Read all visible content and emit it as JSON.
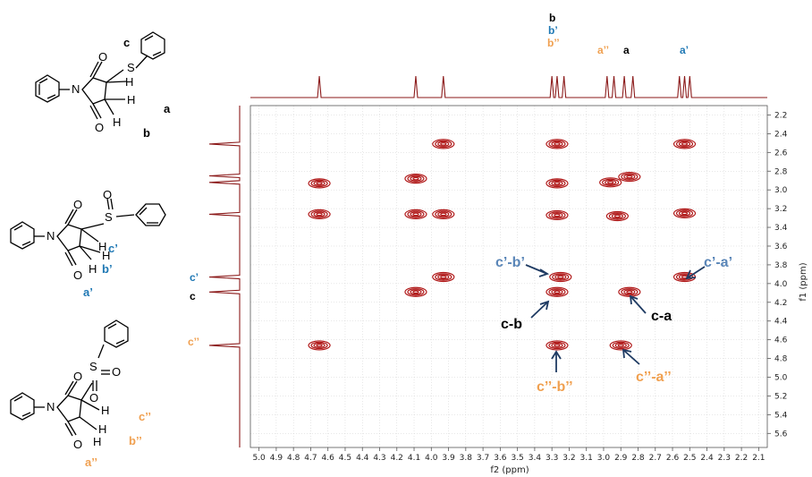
{
  "colors": {
    "spectrum": "#8b1a1a",
    "contour": "#b01818",
    "arrow": "#1f3b63",
    "black": "#000000",
    "blue": "#1f78b4",
    "orange": "#f0a050",
    "grid": "#cfcfcf"
  },
  "chart_data": {
    "type": "scatter",
    "subtype": "2D NMR COSY contour plot",
    "xlabel": "f2 (ppm)",
    "ylabel": "f1 (ppm)",
    "xlim": [
      5.05,
      2.05
    ],
    "ylim": [
      2.1,
      5.75
    ],
    "x_reversed": true,
    "y_reversed": true,
    "grid": true,
    "x_ticks": [
      "5.0",
      "4.9",
      "4.8",
      "4.7",
      "4.6",
      "4.5",
      "4.4",
      "4.3",
      "4.2",
      "4.1",
      "4.0",
      "3.9",
      "3.8",
      "3.7",
      "3.6",
      "3.5",
      "3.4",
      "3.3",
      "3.2",
      "3.1",
      "3.0",
      "2.9",
      "2.8",
      "2.7",
      "2.6",
      "2.5",
      "2.4",
      "2.3",
      "2.2",
      "2.1"
    ],
    "y_ticks": [
      "2.2",
      "2.4",
      "2.6",
      "2.8",
      "3.0",
      "3.2",
      "3.4",
      "3.6",
      "3.8",
      "4.0",
      "4.2",
      "4.4",
      "4.6",
      "4.8",
      "5.0",
      "5.2",
      "5.4",
      "5.6"
    ],
    "cross_peaks": [
      {
        "x": 3.93,
        "y": 2.51
      },
      {
        "x": 3.27,
        "y": 2.51
      },
      {
        "x": 2.53,
        "y": 2.51
      },
      {
        "x": 4.65,
        "y": 2.93
      },
      {
        "x": 4.09,
        "y": 2.88
      },
      {
        "x": 3.27,
        "y": 2.93
      },
      {
        "x": 2.96,
        "y": 2.92
      },
      {
        "x": 2.85,
        "y": 2.86
      },
      {
        "x": 4.65,
        "y": 3.26
      },
      {
        "x": 4.09,
        "y": 3.26
      },
      {
        "x": 3.93,
        "y": 3.26
      },
      {
        "x": 3.27,
        "y": 3.27
      },
      {
        "x": 2.92,
        "y": 3.28
      },
      {
        "x": 2.53,
        "y": 3.25
      },
      {
        "x": 3.93,
        "y": 3.93
      },
      {
        "x": 3.25,
        "y": 3.93
      },
      {
        "x": 2.53,
        "y": 3.93
      },
      {
        "x": 4.09,
        "y": 4.09
      },
      {
        "x": 3.27,
        "y": 4.09
      },
      {
        "x": 2.85,
        "y": 4.09
      },
      {
        "x": 4.65,
        "y": 4.66
      },
      {
        "x": 3.27,
        "y": 4.66
      },
      {
        "x": 2.9,
        "y": 4.66
      }
    ],
    "top_projection_peaks": [
      4.65,
      4.09,
      3.93,
      3.3,
      3.27,
      3.23,
      2.98,
      2.94,
      2.88,
      2.83,
      2.56,
      2.53,
      2.5
    ],
    "left_projection_peaks": [
      2.51,
      2.85,
      2.92,
      3.26,
      3.93,
      4.09,
      4.66
    ],
    "annotations": [
      {
        "text": "c’-b’",
        "color": "blue"
      },
      {
        "text": "c’-a’",
        "color": "blue"
      },
      {
        "text": "c-b",
        "color": "black"
      },
      {
        "text": "c-a",
        "color": "black"
      },
      {
        "text": "c’’-b’’",
        "color": "orange"
      },
      {
        "text": "c’’-a’’",
        "color": "orange"
      }
    ]
  },
  "top_labels": {
    "b": "b",
    "b_prime": "b’",
    "b_dprime": "b’’",
    "a_dprime": "a’’",
    "a": "a",
    "a_prime": "a’"
  },
  "left_labels": {
    "c_prime": "c’",
    "c": "c",
    "c_dprime": "c’’"
  },
  "structures": {
    "s1": {
      "c": "c",
      "a": "a",
      "b": "b",
      "S": "S",
      "N": "N",
      "O1": "O",
      "O2": "O",
      "H1": "H",
      "H2": "H"
    },
    "s2": {
      "c": "c’",
      "a": "a’",
      "b": "b’",
      "S": "S",
      "N": "N",
      "O1": "O",
      "O2": "O",
      "O3": "O",
      "H1": "H",
      "H2": "H"
    },
    "s3": {
      "c": "c’’",
      "a": "a’’",
      "b": "b’’",
      "S": "S",
      "N": "N",
      "O1": "O",
      "O2": "O",
      "O3": "O",
      "O4": "O",
      "H1": "H",
      "H2": "H"
    }
  }
}
